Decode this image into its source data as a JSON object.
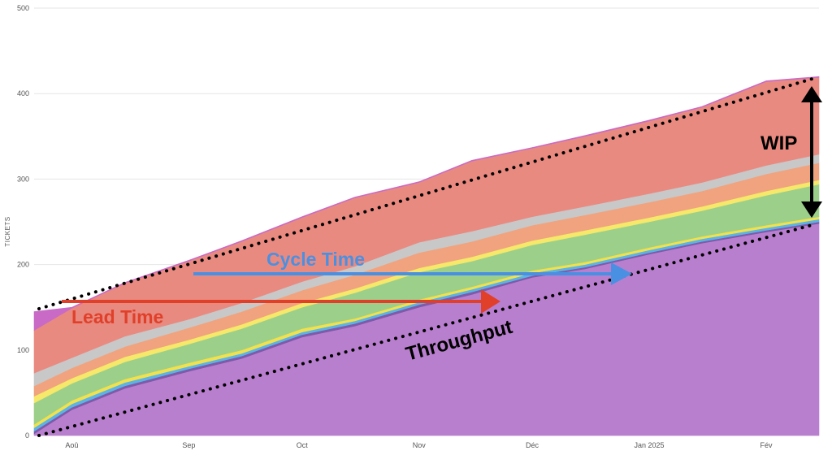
{
  "chart_data": {
    "type": "area",
    "stacked": true,
    "title": "",
    "xlabel": "",
    "ylabel": "TICKETS",
    "x_range": [
      "2024-07-22",
      "2025-02-15"
    ],
    "ylim": [
      0,
      500
    ],
    "y_ticks": [
      0,
      100,
      200,
      300,
      400,
      500
    ],
    "grid": true,
    "x_ticks": [
      {
        "label": "Aoû",
        "date": "2024-08-01"
      },
      {
        "label": "Sep",
        "date": "2024-09-01"
      },
      {
        "label": "Oct",
        "date": "2024-10-01"
      },
      {
        "label": "Nov",
        "date": "2024-11-01"
      },
      {
        "label": "Déc",
        "date": "2024-12-01"
      },
      {
        "label": "Jan 2025",
        "date": "2025-01-01"
      },
      {
        "label": "Fév",
        "date": "2025-02-01"
      }
    ],
    "x": [
      "2024-07-22",
      "2024-08-01",
      "2024-08-15",
      "2024-09-01",
      "2024-09-15",
      "2024-10-01",
      "2024-10-15",
      "2024-11-01",
      "2024-11-15",
      "2024-12-01",
      "2024-12-15",
      "2025-01-01",
      "2025-01-15",
      "2025-02-01",
      "2025-02-15"
    ],
    "series": [
      {
        "color": "#b97fcf",
        "values": [
          2,
          30,
          55,
          75,
          90,
          115,
          128,
          150,
          165,
          185,
          195,
          212,
          225,
          238,
          248
        ]
      },
      {
        "color": "#7e5aa8",
        "values": [
          3,
          3,
          3,
          3,
          3,
          3,
          3,
          3,
          3,
          2,
          2,
          2,
          2,
          2,
          2
        ]
      },
      {
        "color": "#5ab4e6",
        "values": [
          4,
          4,
          4,
          3,
          3,
          3,
          3,
          3,
          3,
          3,
          3,
          3,
          3,
          3,
          3
        ]
      },
      {
        "color": "#f2e14c",
        "values": [
          4,
          4,
          4,
          4,
          4,
          4,
          3,
          3,
          3,
          3,
          3,
          3,
          3,
          3,
          3
        ]
      },
      {
        "color": "#9cd08a",
        "values": [
          25,
          20,
          20,
          22,
          25,
          25,
          30,
          32,
          30,
          30,
          32,
          30,
          30,
          35,
          38
        ]
      },
      {
        "color": "#f5e86a",
        "values": [
          8,
          6,
          6,
          5,
          5,
          5,
          5,
          5,
          5,
          5,
          5,
          5,
          5,
          5,
          5
        ]
      },
      {
        "color": "#f0a37e",
        "values": [
          12,
          12,
          12,
          14,
          15,
          15,
          16,
          18,
          18,
          18,
          18,
          18,
          18,
          20,
          20
        ]
      },
      {
        "color": "#c8c8c8",
        "values": [
          15,
          12,
          12,
          10,
          10,
          10,
          10,
          12,
          12,
          10,
          10,
          10,
          10,
          10,
          10
        ]
      },
      {
        "color": "#e98a80",
        "values": [
          50,
          58,
          62,
          68,
          72,
          75,
          80,
          70,
          82,
          80,
          82,
          85,
          88,
          98,
          90
        ]
      },
      {
        "color": "#c96ac6",
        "values": [
          22,
          1,
          1,
          1,
          1,
          1,
          1,
          1,
          1,
          1,
          1,
          1,
          1,
          1,
          1
        ]
      }
    ],
    "annotations": [
      {
        "text": "Cycle Time",
        "color": "#4a90e2"
      },
      {
        "text": "Lead Time",
        "color": "#e0402a"
      },
      {
        "text": "Throughput",
        "color": "#000000"
      },
      {
        "text": "WIP",
        "color": "#000000"
      }
    ]
  }
}
